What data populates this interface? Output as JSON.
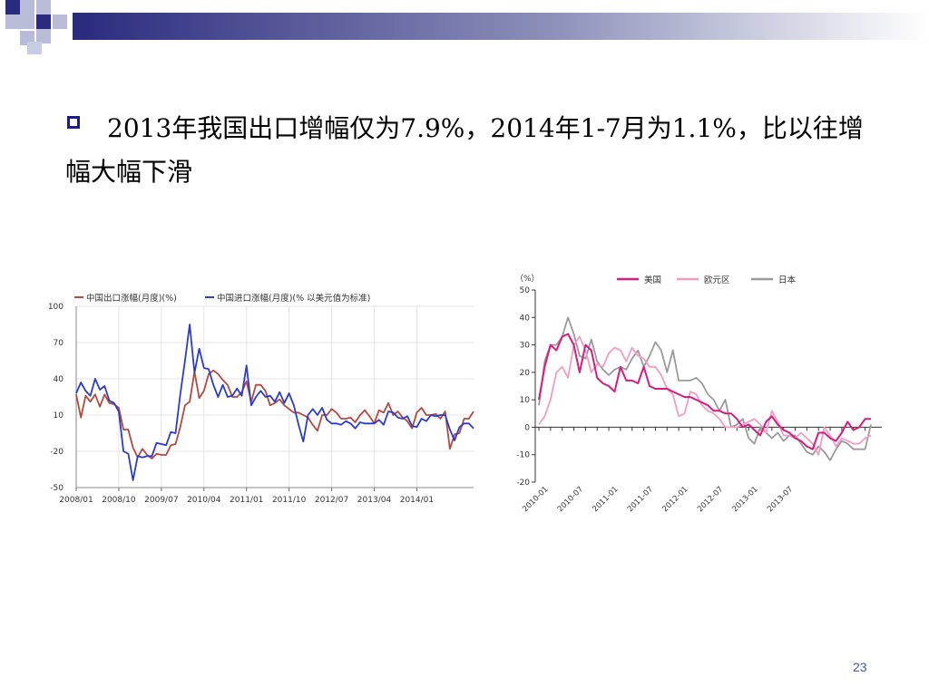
{
  "slide": {
    "title": "2013年我国出口增幅仅为7.9%，2014年1-7月为1.1%，比以往增幅大幅下滑",
    "page_number": "23",
    "colors": {
      "bullet": "#1b1b8a",
      "deco_dark": "#2a2a7e",
      "deco_light": "#b8bcd8",
      "page_number": "#3b5bb8"
    }
  },
  "chart_data": [
    {
      "type": "line",
      "title": "",
      "xlabel": "",
      "ylabel": "",
      "ylim": [
        -50,
        100
      ],
      "yticks": [
        "100",
        "70",
        "40",
        "10",
        "-20",
        "-50"
      ],
      "xticks": [
        "2008/01",
        "2008/10",
        "2009/07",
        "2010/04",
        "2011/01",
        "2011/10",
        "2012/07",
        "2013/04",
        "2014/01"
      ],
      "grid": true,
      "legend_position": "top",
      "x_start": "2008/01",
      "x_end": "2014/07",
      "series": [
        {
          "name": "中国出口涨幅(月度)(%)",
          "color": "#b5493d",
          "values": [
            27,
            8,
            26,
            21,
            27,
            17,
            27,
            20,
            19,
            16,
            -2,
            -2,
            -17,
            -25,
            -18,
            -23,
            -26,
            -22,
            -23,
            -23,
            -15,
            -14,
            0,
            18,
            21,
            46,
            24,
            30,
            44,
            47,
            44,
            39,
            35,
            25,
            25,
            29,
            38,
            21,
            35,
            35,
            30,
            18,
            20,
            23,
            18,
            15,
            12,
            12,
            10,
            8,
            2,
            -3,
            10,
            10,
            15,
            12,
            7,
            7,
            8,
            4,
            10,
            14,
            9,
            3,
            14,
            12,
            20,
            10,
            13,
            8,
            5,
            -1,
            12,
            16,
            10,
            10,
            11,
            7,
            13,
            -18,
            -6,
            -5,
            7,
            7,
            13
          ]
        },
        {
          "name": "中国进口涨幅(月度)(% 以美元值为标准)",
          "color": "#2a3bd0",
          "values": [
            28,
            37,
            30,
            26,
            40,
            31,
            34,
            22,
            20,
            13,
            -20,
            -22,
            -44,
            -24,
            -25,
            -24,
            -24,
            -13,
            -14,
            -15,
            -4,
            -5,
            27,
            55,
            85,
            45,
            65,
            49,
            48,
            35,
            25,
            35,
            25,
            26,
            32,
            26,
            51,
            18,
            25,
            30,
            25,
            26,
            21,
            29,
            20,
            28,
            18,
            2,
            -12,
            10,
            15,
            10,
            16,
            6,
            3,
            3,
            2,
            5,
            3,
            -1,
            4,
            3,
            3,
            3,
            6,
            2,
            13,
            12,
            8,
            7,
            9,
            1,
            0,
            7,
            5,
            10,
            9,
            10,
            10,
            -2,
            -11,
            0,
            3,
            3,
            -1
          ]
        }
      ]
    },
    {
      "type": "line",
      "title": "",
      "xlabel": "",
      "ylabel": "（%）",
      "ylim": [
        -20,
        50
      ],
      "yticks": [
        "50",
        "40",
        "30",
        "20",
        "10",
        "0",
        "-10",
        "-20"
      ],
      "xticks": [
        "2010-01",
        "2010-07",
        "2011-01",
        "2011-07",
        "2012-01",
        "2012-07",
        "2013-01",
        "2013-07"
      ],
      "grid": false,
      "legend_position": "top",
      "series": [
        {
          "name": "美国",
          "color": "#d81b7f",
          "values": [
            10,
            22,
            30,
            28,
            33,
            34,
            30,
            20,
            30,
            28,
            18,
            16,
            15,
            13,
            22,
            17,
            17,
            16,
            22,
            15,
            14,
            14,
            14,
            13,
            12,
            11,
            11,
            10,
            9,
            8,
            6,
            6,
            5,
            5,
            3,
            0,
            1,
            -1,
            -3,
            2,
            4,
            1,
            -1,
            -2,
            -4,
            -5,
            -7,
            -8,
            -2,
            -2,
            -4,
            -5,
            -2,
            2,
            -1,
            0,
            3,
            3
          ]
        },
        {
          "name": "欧元区",
          "color": "#f49bc4",
          "values": [
            1,
            4,
            10,
            20,
            22,
            18,
            30,
            33,
            28,
            20,
            23,
            22,
            27,
            29,
            28,
            24,
            29,
            26,
            25,
            22,
            22,
            19,
            14,
            12,
            4,
            5,
            13,
            12,
            8,
            6,
            5,
            3,
            0,
            0,
            0,
            1,
            2,
            3,
            1,
            -2,
            6,
            2,
            -3,
            -3,
            -4,
            -2,
            -4,
            -6,
            -10,
            0,
            -3,
            -7,
            -4,
            -5,
            -6,
            -6,
            -4,
            -3
          ]
        },
        {
          "name": "日本",
          "color": "#9a9a9a",
          "values": [
            8,
            24,
            30,
            30,
            33,
            40,
            34,
            26,
            25,
            32,
            24,
            21,
            19,
            21,
            22,
            21,
            25,
            28,
            22,
            26,
            31,
            28,
            20,
            28,
            17,
            17,
            17,
            18,
            16,
            12,
            10,
            6,
            10,
            0,
            1,
            3,
            -4,
            -6,
            0,
            -2,
            -4,
            -2,
            -5,
            -3,
            -3,
            -6,
            -9,
            -10,
            -7,
            -9,
            -12,
            -8,
            -5,
            -6,
            -8,
            -8,
            -8,
            1
          ]
        }
      ]
    }
  ]
}
